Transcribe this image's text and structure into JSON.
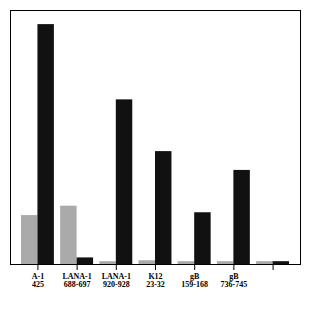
{
  "chart_data": {
    "type": "bar",
    "categories": [
      "A-1\n425",
      "LANA-1\n688-697",
      "LANA-1\n920-928",
      "K12\n23-32",
      "gB\n159-168",
      "gB\n736-745",
      null
    ],
    "series": [
      {
        "color": "#aaaaaa",
        "values": [
          52,
          62,
          3,
          4,
          3,
          3,
          3
        ]
      },
      {
        "color": "#111111",
        "values": [
          255,
          7,
          175,
          120,
          55,
          100,
          3
        ]
      }
    ],
    "ylim": [
      0,
      270
    ],
    "tick_labels": "x",
    "grid": false
  }
}
